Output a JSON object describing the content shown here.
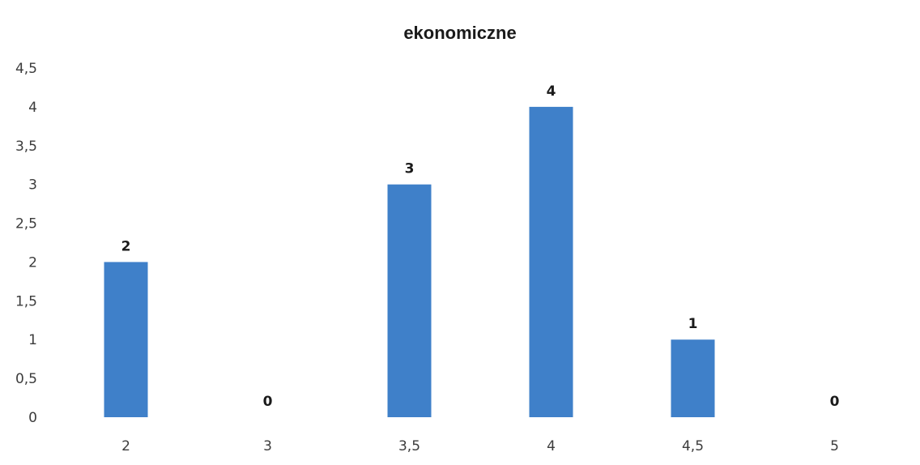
{
  "chart_data": {
    "type": "bar",
    "title": "ekonomiczne",
    "xlabel": "",
    "ylabel": "",
    "categories": [
      "2",
      "3",
      "3,5",
      "4",
      "4,5",
      "5"
    ],
    "values": [
      2,
      0,
      3,
      4,
      1,
      0
    ],
    "data_labels": [
      "2",
      "0",
      "3",
      "4",
      "1",
      "0"
    ],
    "yticks": [
      0,
      0.5,
      1,
      1.5,
      2,
      2.5,
      3,
      3.5,
      4,
      4.5
    ],
    "ytick_labels": [
      "0",
      "0,5",
      "1",
      "1,5",
      "2",
      "2,5",
      "3",
      "3,5",
      "4",
      "4,5"
    ],
    "ylim": [
      0,
      4.5
    ],
    "grid": false,
    "legend": "none",
    "bar_color": "#3f80c9"
  }
}
